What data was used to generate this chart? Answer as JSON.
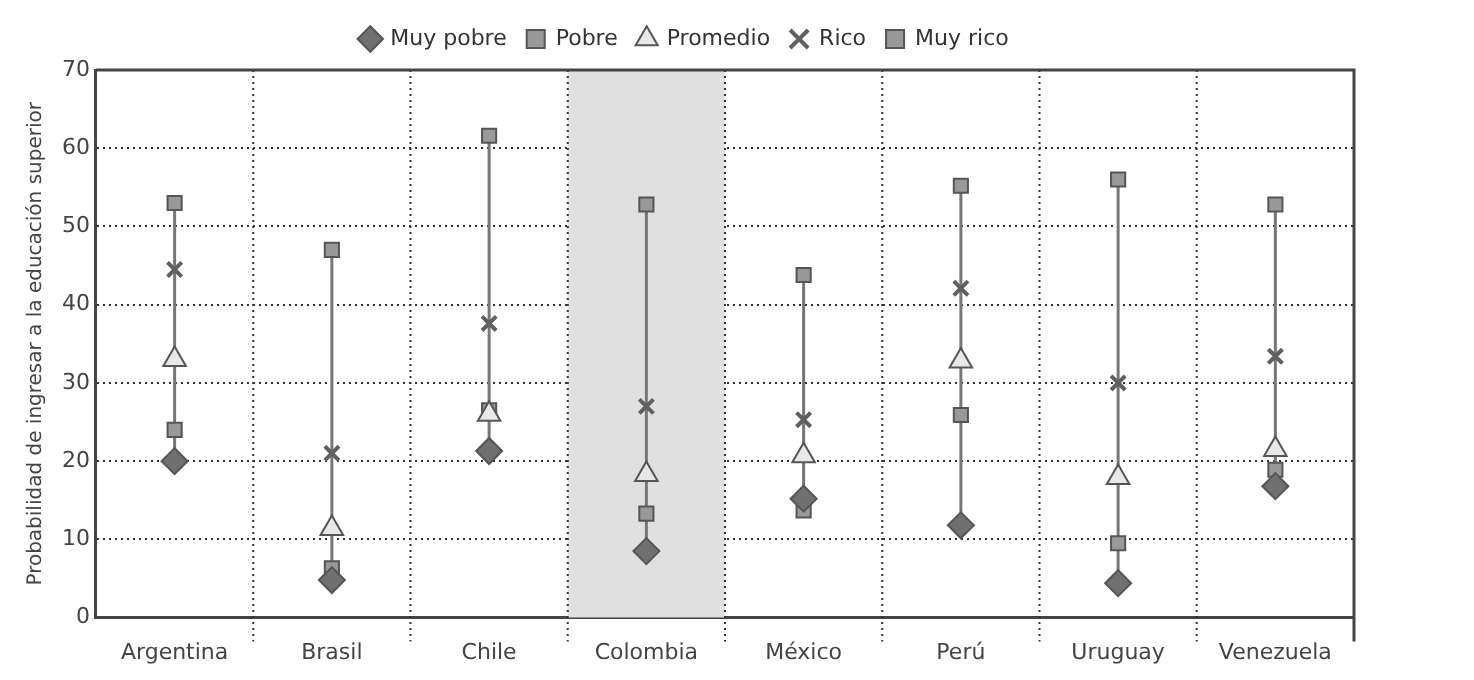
{
  "chart_data": {
    "type": "scatter",
    "ylabel": "Probabilidad de ingresar a la educación superior",
    "categories": [
      "Argentina",
      "Brasil",
      "Chile",
      "Colombia",
      "México",
      "Perú",
      "Uruguay",
      "Venezuela"
    ],
    "series": [
      {
        "name": "Muy pobre",
        "color": "#707070",
        "marker": "diamond",
        "values": [
          20,
          4.8,
          21.3,
          8.5,
          15.2,
          11.8,
          4.4,
          16.8
        ]
      },
      {
        "name": "Pobre",
        "color": "#999999",
        "marker": "square",
        "values": [
          24,
          6.3,
          26.5,
          13.3,
          13.7,
          25.9,
          9.5,
          18.9
        ]
      },
      {
        "name": "Promedio",
        "color": "#e8e8e8",
        "marker": "triangle",
        "values": [
          33,
          11.4,
          26,
          18.3,
          20.7,
          32.8,
          17.9,
          21.5
        ]
      },
      {
        "name": "Rico",
        "color": "#606060",
        "marker": "cross",
        "values": [
          44.5,
          21,
          37.6,
          27,
          25.3,
          42.1,
          30,
          33.4
        ]
      },
      {
        "name": "Muy rico",
        "color": "#999999",
        "marker": "square",
        "values": [
          53,
          47,
          61.6,
          52.8,
          43.8,
          55.2,
          56,
          52.8
        ]
      }
    ],
    "ylim": [
      0,
      70
    ],
    "yticks": [
      0,
      10,
      20,
      30,
      40,
      50,
      60,
      70
    ],
    "bands": [
      {
        "axis": "x",
        "from": "Colombia",
        "to": "Colombia",
        "color": "#e0e0e0"
      }
    ],
    "grid": true,
    "line_style": "dotted",
    "legend": "top"
  }
}
